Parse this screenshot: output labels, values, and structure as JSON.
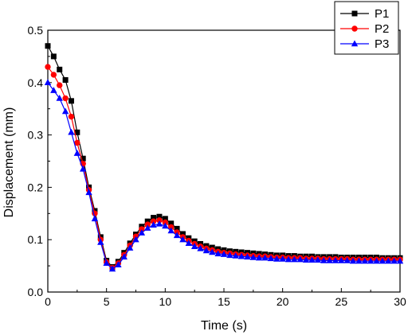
{
  "chart_data": {
    "type": "line",
    "title": "",
    "xlabel": "Time (s)",
    "ylabel": "Displacement (mm)",
    "xlim": [
      0,
      30
    ],
    "ylim": [
      0,
      0.5
    ],
    "xticks": [
      "0",
      "5",
      "10",
      "15",
      "20",
      "25",
      "30"
    ],
    "yticks": [
      "0.0",
      "0.1",
      "0.2",
      "0.3",
      "0.4",
      "0.5"
    ],
    "grid": false,
    "legend_position": "top-right",
    "series": [
      {
        "name": "P1",
        "color": "#000000",
        "marker": "square",
        "x": [
          0,
          0.5,
          1,
          1.5,
          2,
          2.5,
          3,
          3.5,
          4,
          4.5,
          5,
          5.5,
          6,
          6.5,
          7,
          7.5,
          8,
          8.5,
          9,
          9.5,
          10,
          10.5,
          11,
          11.5,
          12,
          12.5,
          13,
          13.5,
          14,
          14.5,
          15,
          15.5,
          16,
          16.5,
          17,
          17.5,
          18,
          18.5,
          19,
          19.5,
          20,
          20.5,
          21,
          21.5,
          22,
          22.5,
          23,
          23.5,
          24,
          24.5,
          25,
          25.5,
          26,
          26.5,
          27,
          27.5,
          28,
          28.5,
          29,
          29.5,
          30
        ],
        "y": [
          0.47,
          0.45,
          0.425,
          0.405,
          0.365,
          0.305,
          0.255,
          0.2,
          0.155,
          0.105,
          0.06,
          0.048,
          0.058,
          0.075,
          0.093,
          0.11,
          0.125,
          0.135,
          0.142,
          0.144,
          0.14,
          0.131,
          0.121,
          0.111,
          0.103,
          0.097,
          0.092,
          0.088,
          0.085,
          0.082,
          0.08,
          0.078,
          0.077,
          0.076,
          0.075,
          0.074,
          0.073,
          0.072,
          0.071,
          0.07,
          0.07,
          0.069,
          0.069,
          0.068,
          0.068,
          0.068,
          0.067,
          0.067,
          0.067,
          0.067,
          0.066,
          0.066,
          0.066,
          0.066,
          0.066,
          0.066,
          0.066,
          0.065,
          0.065,
          0.065,
          0.065
        ]
      },
      {
        "name": "P2",
        "color": "#ff0000",
        "marker": "circle",
        "x": [
          0,
          0.5,
          1,
          1.5,
          2,
          2.5,
          3,
          3.5,
          4,
          4.5,
          5,
          5.5,
          6,
          6.5,
          7,
          7.5,
          8,
          8.5,
          9,
          9.5,
          10,
          10.5,
          11,
          11.5,
          12,
          12.5,
          13,
          13.5,
          14,
          14.5,
          15,
          15.5,
          16,
          16.5,
          17,
          17.5,
          18,
          18.5,
          19,
          19.5,
          20,
          20.5,
          21,
          21.5,
          22,
          22.5,
          23,
          23.5,
          24,
          24.5,
          25,
          25.5,
          26,
          26.5,
          27,
          27.5,
          28,
          28.5,
          29,
          29.5,
          30
        ],
        "y": [
          0.43,
          0.415,
          0.395,
          0.37,
          0.335,
          0.285,
          0.245,
          0.195,
          0.15,
          0.1,
          0.057,
          0.046,
          0.055,
          0.071,
          0.089,
          0.106,
          0.12,
          0.129,
          0.135,
          0.137,
          0.133,
          0.124,
          0.114,
          0.105,
          0.098,
          0.092,
          0.087,
          0.083,
          0.08,
          0.077,
          0.075,
          0.074,
          0.072,
          0.071,
          0.07,
          0.069,
          0.068,
          0.068,
          0.067,
          0.066,
          0.066,
          0.065,
          0.065,
          0.065,
          0.064,
          0.064,
          0.064,
          0.063,
          0.063,
          0.063,
          0.063,
          0.063,
          0.062,
          0.062,
          0.062,
          0.062,
          0.062,
          0.062,
          0.062,
          0.062,
          0.062
        ]
      },
      {
        "name": "P3",
        "color": "#0000ff",
        "marker": "triangle",
        "x": [
          0,
          0.5,
          1,
          1.5,
          2,
          2.5,
          3,
          3.5,
          4,
          4.5,
          5,
          5.5,
          6,
          6.5,
          7,
          7.5,
          8,
          8.5,
          9,
          9.5,
          10,
          10.5,
          11,
          11.5,
          12,
          12.5,
          13,
          13.5,
          14,
          14.5,
          15,
          15.5,
          16,
          16.5,
          17,
          17.5,
          18,
          18.5,
          19,
          19.5,
          20,
          20.5,
          21,
          21.5,
          22,
          22.5,
          23,
          23.5,
          24,
          24.5,
          25,
          25.5,
          26,
          26.5,
          27,
          27.5,
          28,
          28.5,
          29,
          29.5,
          30
        ],
        "y": [
          0.4,
          0.385,
          0.37,
          0.345,
          0.305,
          0.265,
          0.235,
          0.19,
          0.14,
          0.095,
          0.055,
          0.044,
          0.052,
          0.067,
          0.084,
          0.1,
          0.113,
          0.122,
          0.128,
          0.13,
          0.126,
          0.117,
          0.108,
          0.1,
          0.093,
          0.087,
          0.083,
          0.079,
          0.076,
          0.073,
          0.072,
          0.07,
          0.069,
          0.068,
          0.067,
          0.066,
          0.065,
          0.065,
          0.064,
          0.063,
          0.063,
          0.062,
          0.062,
          0.062,
          0.061,
          0.061,
          0.061,
          0.06,
          0.06,
          0.06,
          0.06,
          0.06,
          0.059,
          0.059,
          0.059,
          0.059,
          0.059,
          0.059,
          0.059,
          0.059,
          0.059
        ]
      }
    ]
  }
}
